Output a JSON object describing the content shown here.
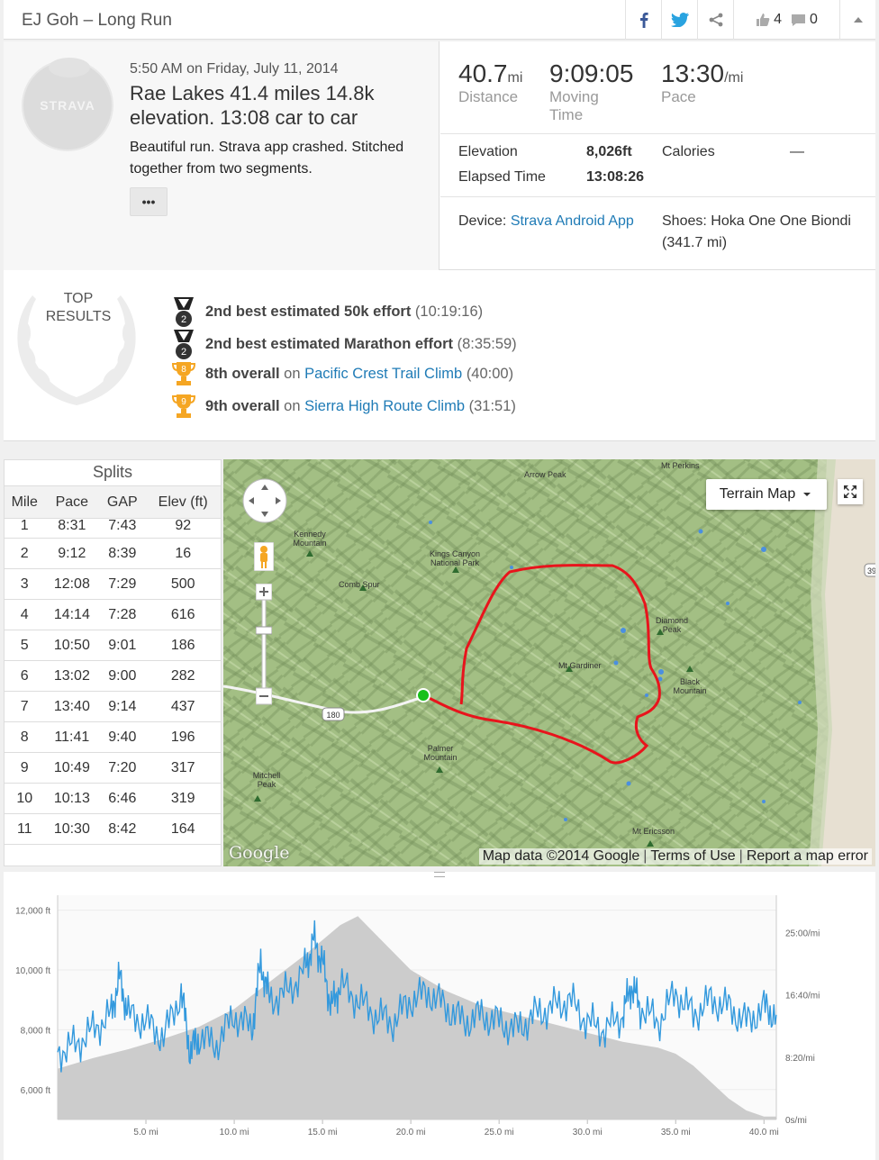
{
  "header": {
    "title": "EJ Goh – Long Run",
    "kudos_count": "4",
    "comment_count": "0",
    "icons": [
      "facebook-icon",
      "twitter-icon",
      "share-icon",
      "thumbs-up-icon",
      "comment-icon",
      "chevron-up-icon"
    ]
  },
  "activity": {
    "avatar_label": "STRAVA",
    "date": "5:50 AM on Friday, July 11, 2014",
    "name": "Rae Lakes 41.4 miles 14.8k elevation. 13:08 car to car",
    "description": "Beautiful run. Strava app crashed. Stitched together from two segments.",
    "more_label": "•••"
  },
  "stats": {
    "distance_value": "40.7",
    "distance_unit": "mi",
    "distance_label": "Distance",
    "moving_time_value": "9:09:05",
    "moving_time_label": "Moving Time",
    "pace_value": "13:30",
    "pace_unit": "/mi",
    "pace_label": "Pace",
    "elevation_label": "Elevation",
    "elevation_value": "8,026ft",
    "calories_label": "Calories",
    "calories_value": "—",
    "elapsed_label": "Elapsed Time",
    "elapsed_value": "13:08:26",
    "device_label": "Device:",
    "device_value": "Strava Android App",
    "shoes_label": "Shoes:",
    "shoes_value": "Hoka One One Biondi (341.7 mi)"
  },
  "results": {
    "heading_line1": "TOP",
    "heading_line2": "RESULTS",
    "items": [
      {
        "icon": "medal-2-icon",
        "rank": "2",
        "title": "2nd best estimated 50k effort",
        "on": "",
        "segment": "",
        "time": "(10:19:16)"
      },
      {
        "icon": "medal-2-icon",
        "rank": "2",
        "title": "2nd best estimated Marathon effort",
        "on": "",
        "segment": "",
        "time": "(8:35:59)"
      },
      {
        "icon": "trophy-icon",
        "rank": "8",
        "title": "8th overall",
        "on": "on",
        "segment": "Pacific Crest Trail Climb",
        "time": "(40:00)"
      },
      {
        "icon": "trophy-icon",
        "rank": "9",
        "title": "9th overall",
        "on": "on",
        "segment": "Sierra High Route Climb",
        "time": "(31:51)"
      }
    ]
  },
  "splits": {
    "caption": "Splits",
    "columns": [
      "Mile",
      "Pace",
      "GAP",
      "Elev (ft)"
    ],
    "rows": [
      [
        "1",
        "8:31",
        "7:43",
        "92"
      ],
      [
        "2",
        "9:12",
        "8:39",
        "16"
      ],
      [
        "3",
        "12:08",
        "7:29",
        "500"
      ],
      [
        "4",
        "14:14",
        "7:28",
        "616"
      ],
      [
        "5",
        "10:50",
        "9:01",
        "186"
      ],
      [
        "6",
        "13:02",
        "9:00",
        "282"
      ],
      [
        "7",
        "13:40",
        "9:14",
        "437"
      ],
      [
        "8",
        "11:41",
        "9:40",
        "196"
      ],
      [
        "9",
        "10:49",
        "7:20",
        "317"
      ],
      [
        "10",
        "10:13",
        "6:46",
        "319"
      ],
      [
        "11",
        "10:30",
        "8:42",
        "164"
      ]
    ]
  },
  "map": {
    "type_button": "Terrain Map",
    "attribution": "Map data ©2014 Google",
    "terms": "Terms of Use",
    "report": "Report a map error",
    "logo": "Google",
    "route_color": "#e8141c",
    "start_color": "#18c01a",
    "highway_label": "180",
    "highway_label_2": "39",
    "places": [
      "Arrow Peak",
      "Mt Perkins",
      "Kennedy Mountain",
      "Kings Canyon National Park",
      "Comb Spur",
      "Diamond Peak",
      "Mt Gardiner",
      "Black Mountain",
      "Palmer Mountain",
      "Mitchell Peak",
      "Mt Ericsson"
    ]
  },
  "chart_data": {
    "type": "area",
    "x_unit": "mi",
    "xlim": [
      0,
      40.7
    ],
    "x_ticks": [
      "5.0 mi",
      "10.0 mi",
      "15.0 mi",
      "20.0 mi",
      "25.0 mi",
      "30.0 mi",
      "35.0 mi",
      "40.0 mi"
    ],
    "y_left_ticks": [
      "6,000 ft",
      "8,000 ft",
      "10,000 ft",
      "12,000 ft"
    ],
    "y_left_lim": [
      5000,
      12500
    ],
    "y_right_ticks": [
      "0s/mi",
      "8:20/mi",
      "16:40/mi",
      "25:00/mi"
    ],
    "y_right_lim": [
      0,
      30
    ],
    "series": [
      {
        "kind": "elevation",
        "color": "#cccccc",
        "x": [
          0,
          2,
          4,
          6,
          8,
          10,
          12,
          14,
          15,
          16,
          17,
          17.5,
          18,
          19,
          20,
          22,
          24,
          26,
          28,
          30,
          32,
          34,
          35,
          36,
          38,
          39,
          40,
          40.7
        ],
        "values": [
          6700,
          7050,
          7350,
          7700,
          8100,
          8700,
          9600,
          10500,
          11000,
          11500,
          11800,
          11500,
          11200,
          10600,
          10000,
          9300,
          8800,
          8500,
          8200,
          7900,
          7600,
          7400,
          7200,
          6800,
          5700,
          5300,
          5100,
          5100
        ]
      },
      {
        "kind": "pace",
        "color": "#3399dd",
        "x": [
          0,
          1,
          2,
          3,
          3.5,
          4,
          5,
          6,
          7,
          7.5,
          8,
          9,
          10,
          11,
          11.5,
          12,
          13,
          14,
          14.5,
          15,
          15.5,
          16,
          17,
          18,
          19,
          20,
          21,
          22,
          23,
          24,
          25,
          26,
          27,
          28,
          29,
          30,
          31,
          32,
          32.5,
          33,
          34,
          35,
          36,
          37,
          38,
          39,
          40,
          40.7
        ],
        "values": [
          9,
          10,
          12,
          14,
          19,
          14,
          13,
          11,
          17,
          9,
          11,
          10,
          14,
          12,
          21,
          16,
          17,
          20,
          24,
          21,
          15,
          18,
          16,
          14,
          13,
          16,
          17,
          15,
          13,
          14,
          13,
          12,
          14,
          15,
          16,
          13,
          12,
          14,
          18,
          15,
          13,
          17,
          14,
          16,
          15,
          13,
          15,
          14
        ]
      }
    ]
  }
}
